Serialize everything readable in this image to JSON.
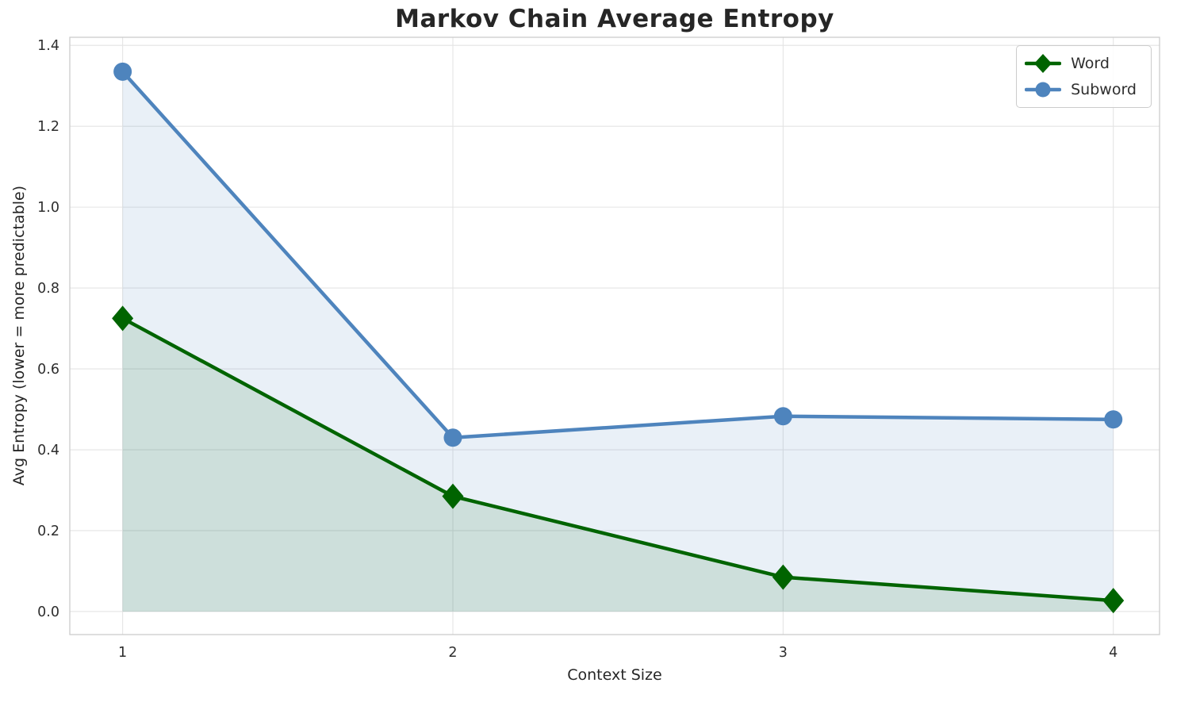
{
  "chart_data": {
    "type": "line",
    "title": "Markov Chain Average Entropy",
    "xlabel": "Context Size",
    "ylabel": "Avg Entropy (lower = more predictable)",
    "x": [
      1,
      2,
      3,
      4
    ],
    "series": [
      {
        "name": "Word",
        "values": [
          0.725,
          0.285,
          0.085,
          0.027
        ],
        "color": "#006400",
        "marker": "diamond",
        "fill_opacity": 0.12
      },
      {
        "name": "Subword",
        "values": [
          1.335,
          0.43,
          0.483,
          0.475
        ],
        "color": "#4e84bd",
        "marker": "circle",
        "fill_opacity": 0.12
      }
    ],
    "xticks": [
      1,
      2,
      3,
      4
    ],
    "yticks": [
      0.0,
      0.2,
      0.4,
      0.6,
      0.8,
      1.0,
      1.2,
      1.4
    ],
    "xlim": [
      0.84,
      4.14
    ],
    "ylim": [
      -0.057,
      1.42
    ],
    "grid": true,
    "legend_position": "upper right",
    "background": "#ffffff"
  }
}
